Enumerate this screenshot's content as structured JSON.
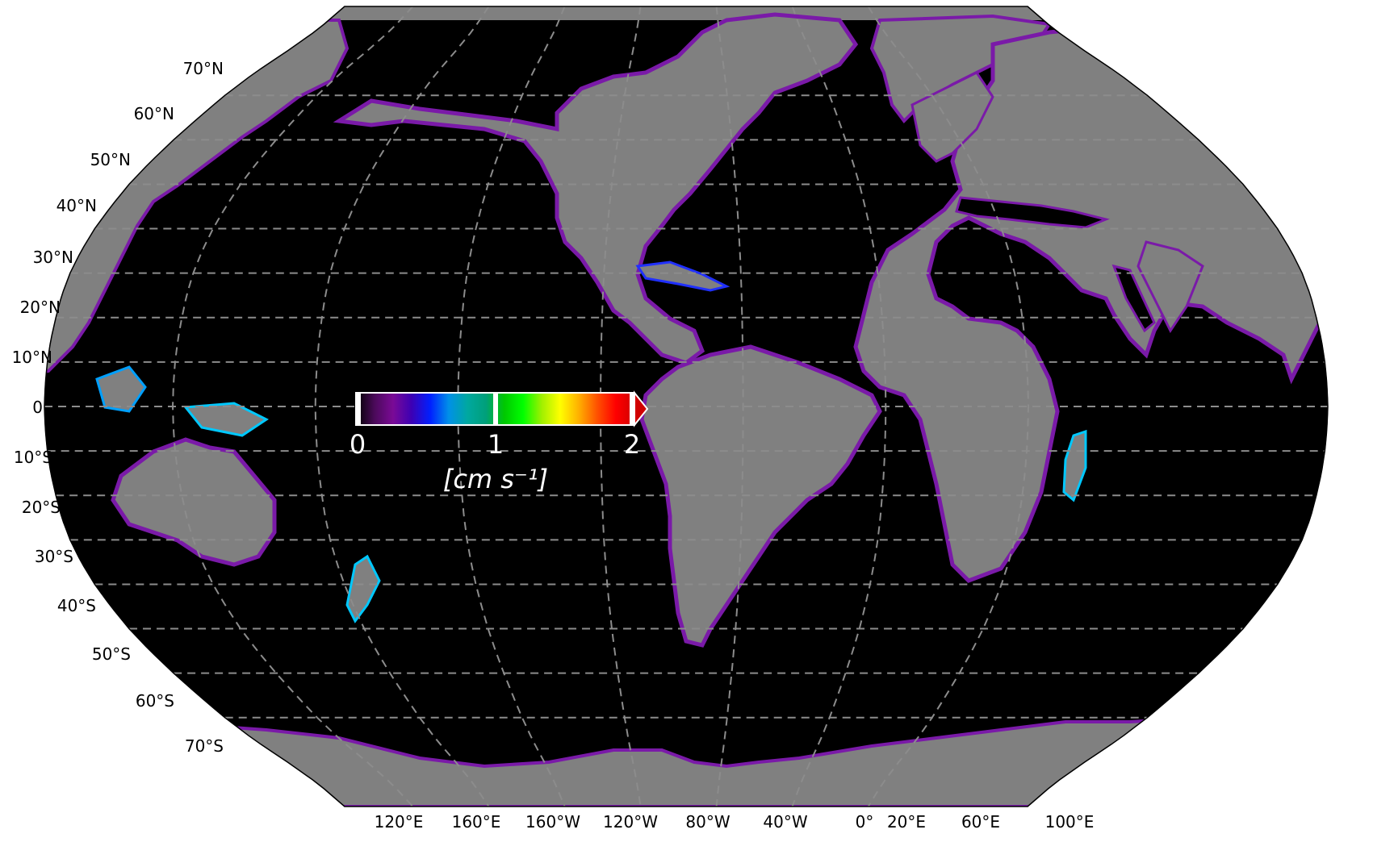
{
  "map": {
    "projection": "Robinson",
    "central_longitude": "dateline-centred (~200°E)",
    "ocean_color": "#000000",
    "land_color": "#808080",
    "coast_glow_colors": [
      "#5a0a78",
      "#8a1ab0",
      "#2030ff",
      "#00c8ff",
      "#00ff40",
      "#ffff00",
      "#ff2000"
    ],
    "gridline_color": "#8c8c8c",
    "gridline_style": "dashed",
    "lat_labels": [
      "70°N",
      "60°N",
      "50°N",
      "40°N",
      "30°N",
      "20°N",
      "10°N",
      "0°",
      "10°S",
      "20°S",
      "30°S",
      "40°S",
      "50°S",
      "60°S",
      "70°S"
    ],
    "lon_labels": [
      "120°E",
      "160°E",
      "160°W",
      "120°W",
      "80°W",
      "40°W",
      "0°",
      "20°E",
      "60°E",
      "100°E"
    ]
  },
  "colorbar": {
    "ticks": [
      "0",
      "1",
      "2"
    ],
    "min": 0,
    "max": 2,
    "extend": "max",
    "unit_label": "[cm s⁻¹]",
    "colors": [
      "#000000",
      "#4b0a5a",
      "#7a0a96",
      "#3c00b4",
      "#0020ff",
      "#0090e8",
      "#00a8a0",
      "#00a07a",
      "#00c800",
      "#00ff00",
      "#a0f000",
      "#ffff00",
      "#ffb000",
      "#ff5000",
      "#ff0000",
      "#d00000"
    ]
  }
}
